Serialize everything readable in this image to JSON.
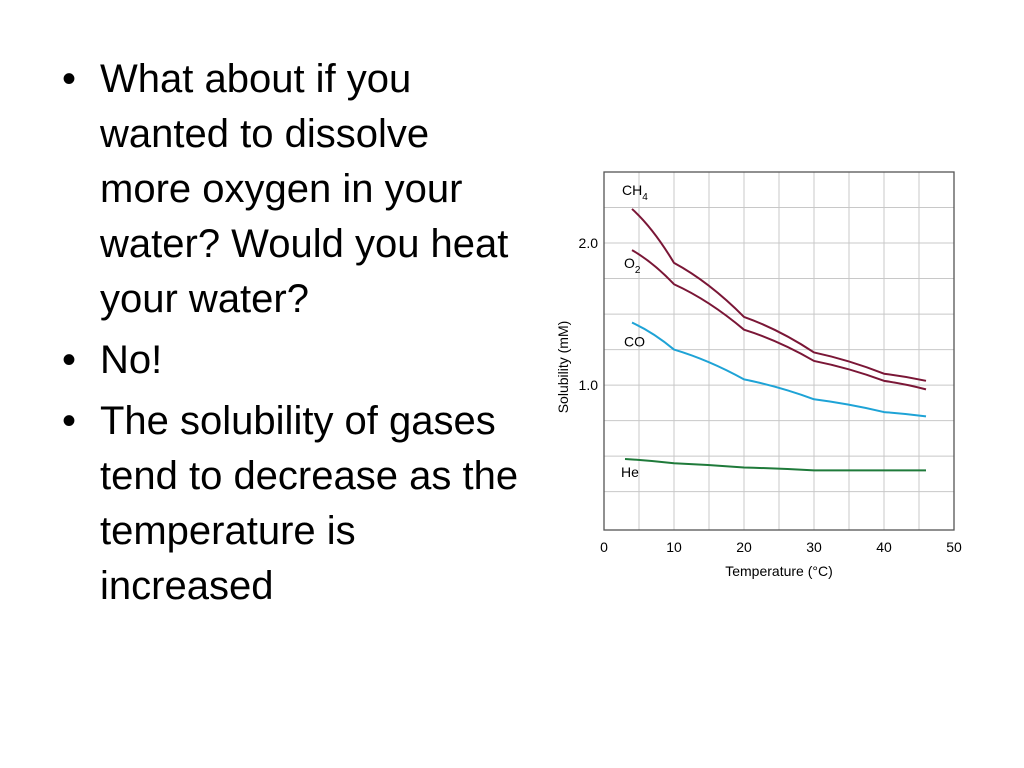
{
  "slide": {
    "bullets": [
      {
        "text": "What about if you wanted to dissolve more oxygen in your water? Would you heat your water?"
      },
      {
        "text": "No!"
      },
      {
        "text": "The solubility of gases tend to decrease as the temperature is increased"
      }
    ]
  },
  "chart_data": {
    "type": "line",
    "xlabel": "Temperature (°C)",
    "ylabel": "Solubility (mM)",
    "xlim": [
      0,
      50
    ],
    "ylim": [
      -0.02,
      2.5
    ],
    "x_ticks": [
      {
        "value": 0,
        "label": "0"
      },
      {
        "value": 10,
        "label": "10"
      },
      {
        "value": 20,
        "label": "20"
      },
      {
        "value": 30,
        "label": "30"
      },
      {
        "value": 40,
        "label": "40"
      },
      {
        "value": 50,
        "label": "50"
      }
    ],
    "y_ticks": [
      {
        "value": 1.0,
        "label": "1.0"
      },
      {
        "value": 2.0,
        "label": "2.0"
      }
    ],
    "grid": true,
    "series": [
      {
        "name": "CH",
        "subscript": "4",
        "color": "#7a1636",
        "x": [
          4,
          10,
          20,
          30,
          40,
          46
        ],
        "y": [
          2.24,
          1.86,
          1.48,
          1.23,
          1.08,
          1.03
        ]
      },
      {
        "name": "O",
        "subscript": "2",
        "color": "#7a1636",
        "x": [
          4,
          10,
          20,
          30,
          40,
          46
        ],
        "y": [
          1.95,
          1.71,
          1.39,
          1.17,
          1.03,
          0.97
        ]
      },
      {
        "name": "CO",
        "subscript": "",
        "color": "#1ea3d6",
        "x": [
          4,
          10,
          20,
          30,
          40,
          46
        ],
        "y": [
          1.44,
          1.25,
          1.04,
          0.9,
          0.81,
          0.78
        ]
      },
      {
        "name": "He",
        "subscript": "",
        "color": "#1f7a3a",
        "x": [
          3,
          10,
          20,
          30,
          40,
          46
        ],
        "y": [
          0.48,
          0.45,
          0.42,
          0.4,
          0.4,
          0.4
        ]
      }
    ]
  }
}
